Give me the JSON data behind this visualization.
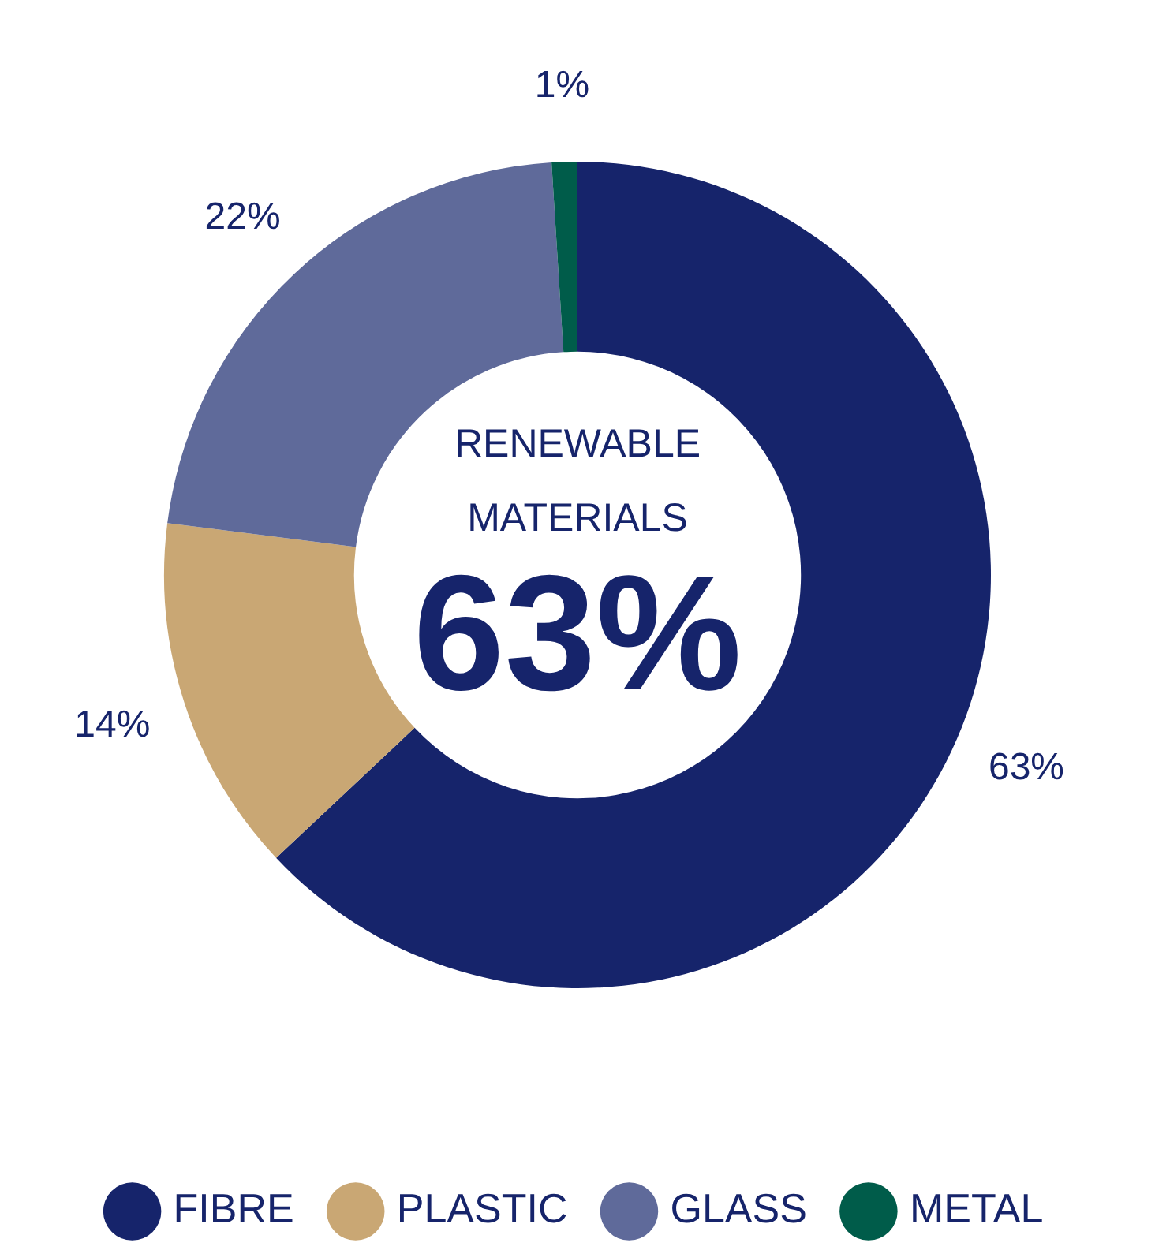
{
  "chart_data": {
    "type": "donut",
    "title": "RENEWABLE MATERIALS",
    "annotations": [
      "63%"
    ],
    "categories": [
      "FIBRE",
      "PLASTIC",
      "GLASS",
      "METAL"
    ],
    "values": [
      63,
      14,
      22,
      1
    ],
    "colors": [
      "#16246b",
      "#c9a774",
      "#5f6a9a",
      "#005c4a"
    ],
    "value_labels": [
      "63%",
      "14%",
      "22%",
      "1%"
    ],
    "legend": "bottom"
  }
}
